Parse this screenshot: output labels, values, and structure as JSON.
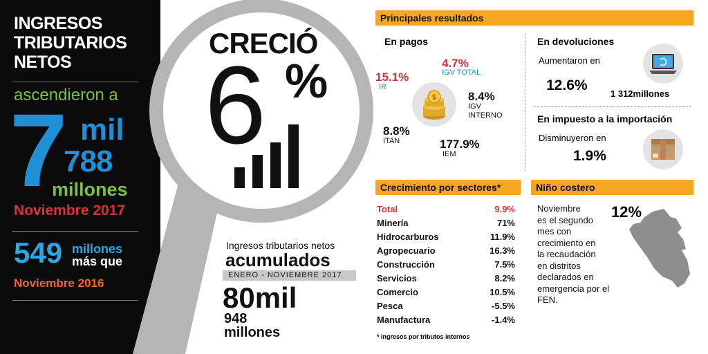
{
  "left": {
    "title_lines": [
      "INGRESOS",
      "TRIBUTARIOS",
      "NETOS"
    ],
    "ascended": "ascendieron a",
    "big_seven": "7",
    "big_mil": "mil",
    "big_788": "788",
    "millones": "millones",
    "period": "Noviembre 2017",
    "diff_value": "549",
    "diff_unit_1": "millones",
    "diff_unit_2": "más que",
    "prev_period": "Noviembre 2016"
  },
  "lens": {
    "crecio": "CRECIÓ",
    "six": "6",
    "pct": "%"
  },
  "accum": {
    "label": "Ingresos tributarios netos",
    "title": "acumulados",
    "period": "ENERO - NOVIEMBRE 2017",
    "value": "80mil",
    "value_2": "948",
    "unit": "millones"
  },
  "results": {
    "header": "Principales resultados",
    "pagos_title": "En pagos",
    "items": {
      "igv_total_pct": "4.7%",
      "igv_total_label": "IGV TOTAL",
      "ir_pct": "15.1%",
      "ir_label": "IR",
      "igv_int_pct": "8.4%",
      "igv_int_label_1": "IGV",
      "igv_int_label_2": "INTERNO",
      "itan_pct": "8.8%",
      "itan_label": "ITAN",
      "iem_pct": "177.9%",
      "iem_label": "IEM"
    },
    "devol_title": "En devoluciones",
    "devol_text": "Aumentaron en",
    "devol_pct": "12.6%",
    "devol_amount": "1 312millones",
    "import_title": "En impuesto a la importación",
    "import_text": "Disminuyeron en",
    "import_pct": "1.9%"
  },
  "sectors": {
    "header": "Crecimiento por sectores*",
    "rows": [
      {
        "name": "Total",
        "value": "9.9%"
      },
      {
        "name": "Minería",
        "value": "71%"
      },
      {
        "name": "Hidrocarburos",
        "value": "11.9%"
      },
      {
        "name": "Agropecuario",
        "value": "16.3%"
      },
      {
        "name": "Construcción",
        "value": "7.5%"
      },
      {
        "name": "Servicios",
        "value": "8.2%"
      },
      {
        "name": "Comercio",
        "value": "10.5%"
      },
      {
        "name": "Pesca",
        "value": "-5.5%"
      },
      {
        "name": "Manufactura",
        "value": "-1.4%"
      }
    ],
    "footnote": "* Ingresos por tributos internos"
  },
  "nino": {
    "header": "Niño costero",
    "pct": "12%",
    "text_lines": [
      "Noviembre",
      "es el segundo",
      "mes con",
      "crecimiento en",
      "la recaudación",
      "en distritos",
      "declarados en",
      "emergencia por el",
      "FEN."
    ]
  },
  "colors": {
    "accent_orange": "#f5a623",
    "green": "#7ac143",
    "blue": "#1f8fd6",
    "red": "#d6323c",
    "orange_text": "#f26722",
    "gray": "#b5b5b5"
  },
  "icons": [
    "magnifier-icon",
    "coins-icon",
    "laptop-icon",
    "box-icon",
    "peru-map-icon",
    "bar-chart-icon"
  ]
}
